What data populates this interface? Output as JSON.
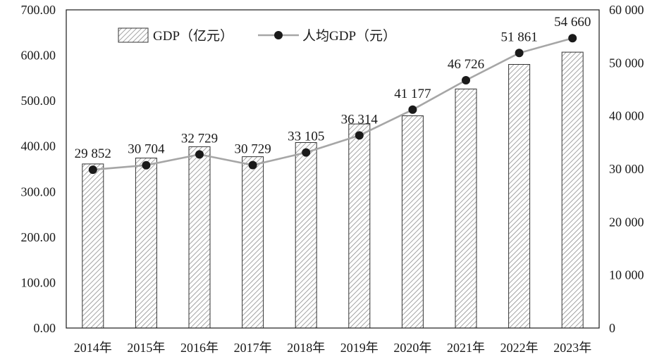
{
  "chart_data": {
    "type": "bar",
    "categories": [
      "2014年",
      "2015年",
      "2016年",
      "2017年",
      "2018年",
      "2019年",
      "2020年",
      "2021年",
      "2022年",
      "2023年"
    ],
    "series": [
      {
        "name": "GDP（亿元）",
        "type": "bar",
        "axis": "left",
        "values": [
          361,
          374,
          399,
          377,
          408,
          449,
          467,
          526,
          580,
          607
        ]
      },
      {
        "name": "人均GDP（元）",
        "type": "line",
        "axis": "right",
        "values": [
          29852,
          30704,
          32729,
          30729,
          33105,
          36314,
          41177,
          46726,
          51861,
          54660
        ],
        "labels": [
          "29 852",
          "30 704",
          "32 729",
          "30 729",
          "33 105",
          "36 314",
          "41 177",
          "46 726",
          "51 861",
          "54 660"
        ]
      }
    ],
    "y_left": {
      "ylim": [
        0,
        700
      ],
      "ticks": [
        0,
        100,
        200,
        300,
        400,
        500,
        600,
        700
      ],
      "tick_labels": [
        "0.00",
        "100.00",
        "200.00",
        "300.00",
        "400.00",
        "500.00",
        "600.00",
        "700.00"
      ]
    },
    "y_right": {
      "ylim": [
        0,
        60000
      ],
      "ticks": [
        0,
        10000,
        20000,
        30000,
        40000,
        50000,
        60000
      ],
      "tick_labels": [
        "0",
        "10 000",
        "20 000",
        "30 000",
        "40 000",
        "50 000",
        "60 000"
      ]
    },
    "legend": {
      "position": "top-left",
      "entries": [
        "GDP（亿元）",
        "人均GDP（元）"
      ]
    },
    "colors": {
      "line": "#a6a6a6",
      "marker": "#1a1a1a",
      "bar_stroke": "#333333",
      "hatch": "#8c8c8c",
      "axis": "#1a1a1a"
    },
    "title": "",
    "xlabel": "",
    "ylabel": ""
  }
}
